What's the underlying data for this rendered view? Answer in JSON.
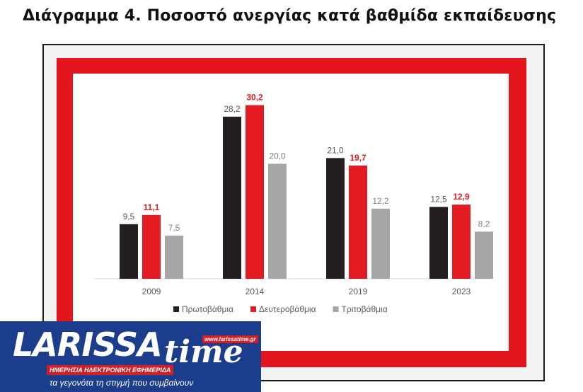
{
  "page": {
    "title": "Διάγραμμα 4. Ποσοστό ανεργίας κατά βαθμίδα εκπαίδευσης"
  },
  "chart_data": {
    "type": "bar",
    "title": "",
    "xlabel": "",
    "ylabel": "",
    "categories": [
      "2009",
      "2014",
      "2019",
      "2023"
    ],
    "ylim": [
      0,
      32
    ],
    "grid": false,
    "legend_position": "bottom",
    "series": [
      {
        "name": "Πρωτοβάθμια",
        "color": "#231f20",
        "label_color": "#595959",
        "values": [
          9.5,
          28.2,
          21.0,
          12.5
        ],
        "labels": [
          "9,5",
          "28,2",
          "21,0",
          "12,5"
        ]
      },
      {
        "name": "Δευτεροβάθμια",
        "color": "#e31b23",
        "label_color": "#e31b23",
        "values": [
          11.1,
          30.2,
          19.7,
          12.9
        ],
        "labels": [
          "11,1",
          "30,2",
          "19,7",
          "12,9"
        ]
      },
      {
        "name": "Τριτοβάθμια",
        "color": "#a6a6a6",
        "label_color": "#7f7f7f",
        "values": [
          7.5,
          20.0,
          12.2,
          8.2
        ],
        "labels": [
          "7,5",
          "20,0",
          "12,2",
          "8,2"
        ]
      }
    ]
  },
  "logo": {
    "word": "LARISSA",
    "time": "time",
    "url": "www.larissatime.gr",
    "tagline": "ΗΜΕΡΗΣΙΑ ΗΛΕΚΤΡΟΝΙΚΗ ΕΦΗΜΕΡΙΔΑ",
    "slogan": "τα γεγονότα τη στιγμή που συμβαίνουν"
  }
}
